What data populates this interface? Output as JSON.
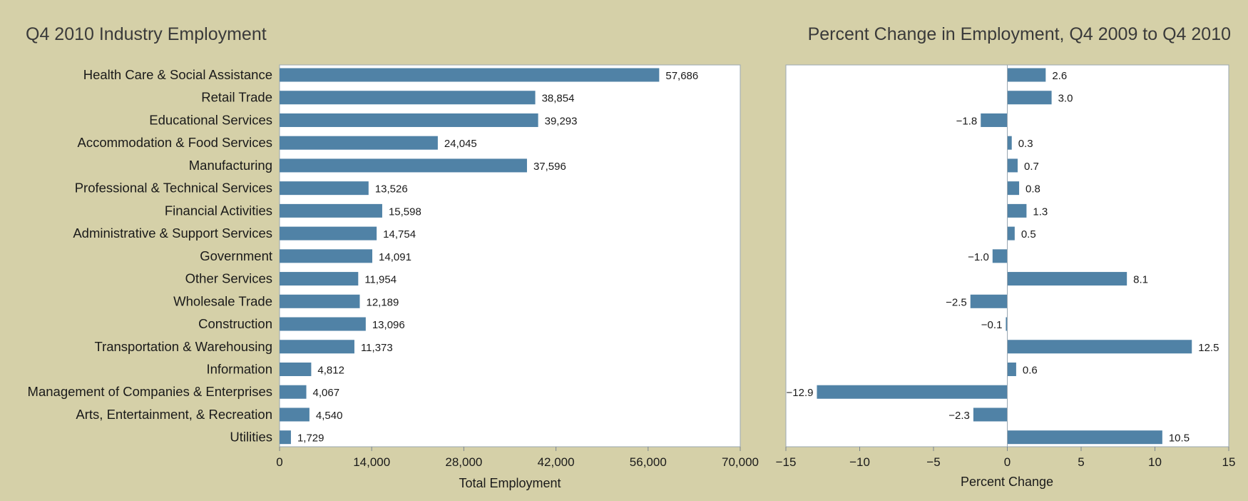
{
  "chart_data": [
    {
      "type": "bar",
      "orientation": "horizontal",
      "title": "Q4 2010 Industry Employment",
      "xlabel": "Total Employment",
      "xlim": [
        0,
        70000
      ],
      "xticks": [
        "0",
        "14,000",
        "28,000",
        "42,000",
        "56,000",
        "70,000"
      ],
      "xtick_values": [
        0,
        14000,
        28000,
        42000,
        56000,
        70000
      ],
      "categories": [
        "Health Care & Social Assistance",
        "Retail Trade",
        "Educational Services",
        "Accommodation & Food Services",
        "Manufacturing",
        "Professional & Technical Services",
        "Financial Activities",
        "Administrative & Support Services",
        "Government",
        "Other Services",
        "Wholesale Trade",
        "Construction",
        "Transportation & Warehousing",
        "Information",
        "Management of Companies & Enterprises",
        "Arts, Entertainment, & Recreation",
        "Utilities"
      ],
      "values": [
        57686,
        38854,
        39293,
        24045,
        37596,
        13526,
        15598,
        14754,
        14091,
        11954,
        12189,
        13096,
        11373,
        4812,
        4067,
        4540,
        1729
      ],
      "labels": [
        "57,686",
        "38,854",
        "39,293",
        "24,045",
        "37,596",
        "13,526",
        "15,598",
        "14,754",
        "14,091",
        "11,954",
        "12,189",
        "13,096",
        "11,373",
        "4,812",
        "4,067",
        "4,540",
        "1,729"
      ],
      "grid": false,
      "bar_color": "#5082a6"
    },
    {
      "type": "bar",
      "orientation": "horizontal",
      "title": "Percent Change in Employment, Q4 2009 to Q4 2010",
      "xlabel": "Percent Change",
      "xlim": [
        -15,
        15
      ],
      "xticks": [
        "−15",
        "−10",
        "−5",
        "0",
        "5",
        "10",
        "15"
      ],
      "xtick_values": [
        -15,
        -10,
        -5,
        0,
        5,
        10,
        15
      ],
      "values": [
        2.6,
        3.0,
        -1.8,
        0.3,
        0.7,
        0.8,
        1.3,
        0.5,
        -1.0,
        8.1,
        -2.5,
        -0.1,
        12.5,
        0.6,
        -12.9,
        -2.3,
        10.5
      ],
      "labels": [
        "2.6",
        "3.0",
        "−1.8",
        "0.3",
        "0.7",
        "0.8",
        "1.3",
        "0.5",
        "−1.0",
        "8.1",
        "−2.5",
        "−0.1",
        "12.5",
        "0.6",
        "−12.9",
        "−2.3",
        "10.5"
      ],
      "grid": false,
      "bar_color": "#5082a6"
    }
  ]
}
